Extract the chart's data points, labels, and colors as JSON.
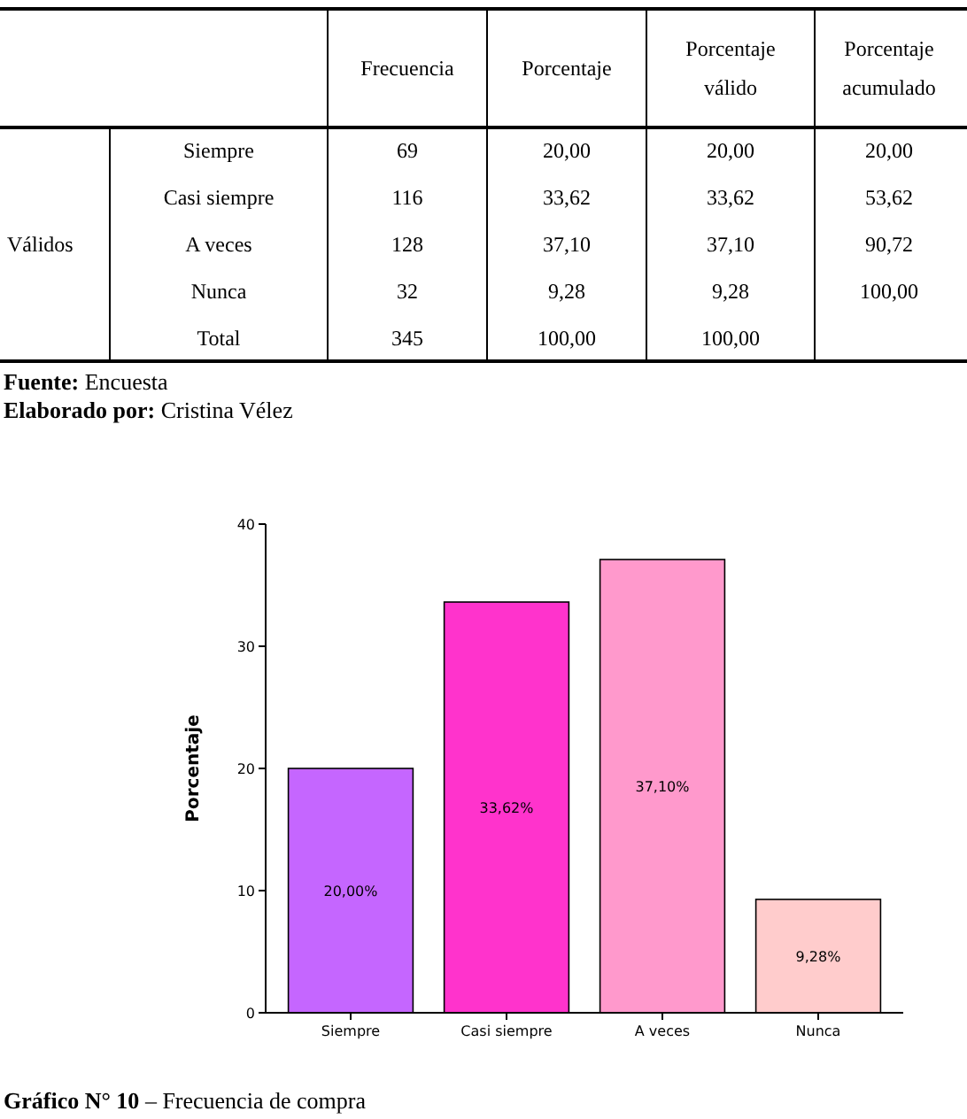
{
  "chart_data": [
    {
      "type": "other",
      "categories": [
        "Frecuencia",
        "Porcentaje",
        "Porcentaje válido",
        "Porcentaje acumulado"
      ],
      "y_categories": [
        "Siempre",
        "Casi siempre",
        "A veces",
        "Nunca",
        "Total"
      ],
      "cell_labels": [
        [
          "69",
          "20,00",
          "20,00",
          "20,00"
        ],
        [
          "116",
          "33,62",
          "33,62",
          "53,62"
        ],
        [
          "128",
          "37,10",
          "37,10",
          "90,72"
        ],
        [
          "32",
          "9,28",
          "9,28",
          "100,00"
        ],
        [
          "345",
          "100,00",
          "100,00",
          null
        ]
      ],
      "annotations": [
        "Válidos",
        "Fuente: Encuesta",
        "Elaborado por: Cristina Vélez"
      ]
    },
    {
      "type": "bar",
      "categories": [
        "Siempre",
        "Casi siempre",
        "A veces",
        "Nunca"
      ],
      "values": [
        20,
        33.62,
        37.1,
        9.28
      ],
      "colors": [
        "#c566ff",
        "#ff33cc",
        "#ff99cc",
        "#ffcccc"
      ],
      "ylim": [
        0,
        40
      ],
      "yticks": [
        0,
        10,
        20,
        30,
        40
      ],
      "ylabel": "Porcentaje",
      "value_labels": [
        "20,00%",
        "33,62%",
        "37,10%",
        "9,28%"
      ],
      "grid": false,
      "annotations": [
        "Gráfico N° 10 – Frecuencia de compra"
      ]
    }
  ]
}
